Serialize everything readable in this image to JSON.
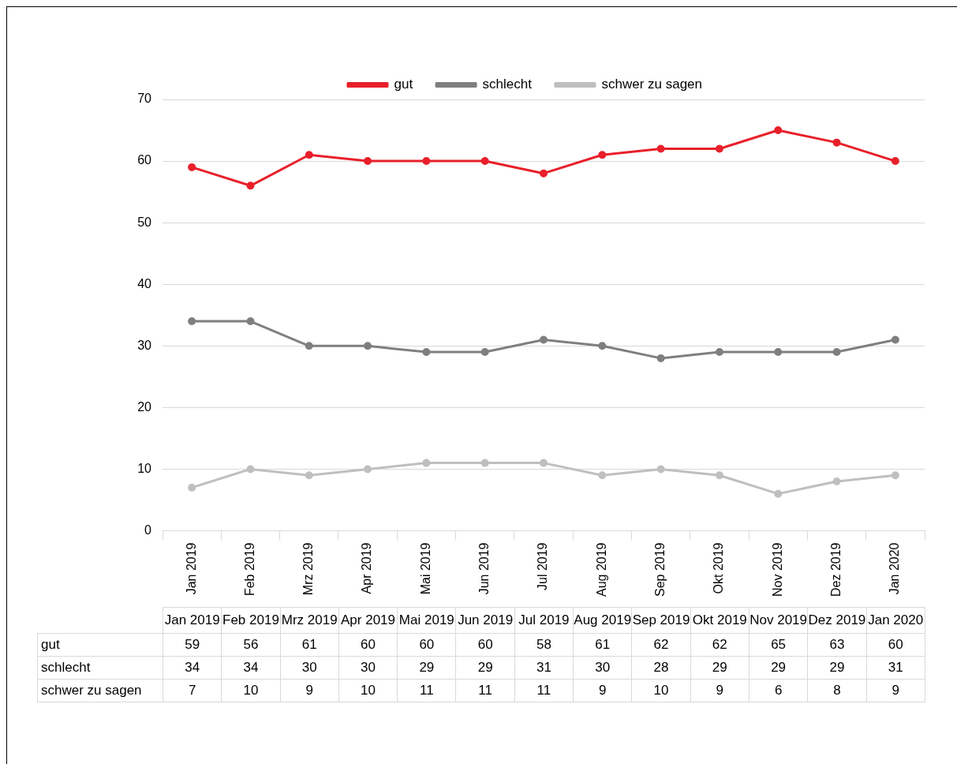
{
  "chart_data": {
    "type": "line",
    "categories": [
      "Jan 2019",
      "Feb 2019",
      "Mrz 2019",
      "Apr 2019",
      "Mai 2019",
      "Jun 2019",
      "Jul 2019",
      "Aug 2019",
      "Sep 2019",
      "Okt 2019",
      "Nov 2019",
      "Dez 2019",
      "Jan 2020"
    ],
    "series": [
      {
        "name": "gut",
        "color": "#e8202a",
        "values": [
          59,
          56,
          61,
          60,
          60,
          60,
          58,
          61,
          62,
          62,
          65,
          63,
          60
        ]
      },
      {
        "name": "schlecht",
        "color": "#7f7f7f",
        "values": [
          34,
          34,
          30,
          30,
          29,
          29,
          31,
          30,
          28,
          29,
          29,
          29,
          31
        ]
      },
      {
        "name": "schwer zu sagen",
        "color": "#bfbfbf",
        "values": [
          7,
          10,
          9,
          10,
          11,
          11,
          11,
          9,
          10,
          9,
          6,
          8,
          9
        ]
      }
    ],
    "ylim": [
      0,
      70
    ],
    "yticks": [
      0,
      10,
      20,
      30,
      40,
      50,
      60,
      70
    ],
    "grid": "y",
    "legend": "top",
    "marker": "circle",
    "line_style": "solid",
    "data_labels": true
  }
}
